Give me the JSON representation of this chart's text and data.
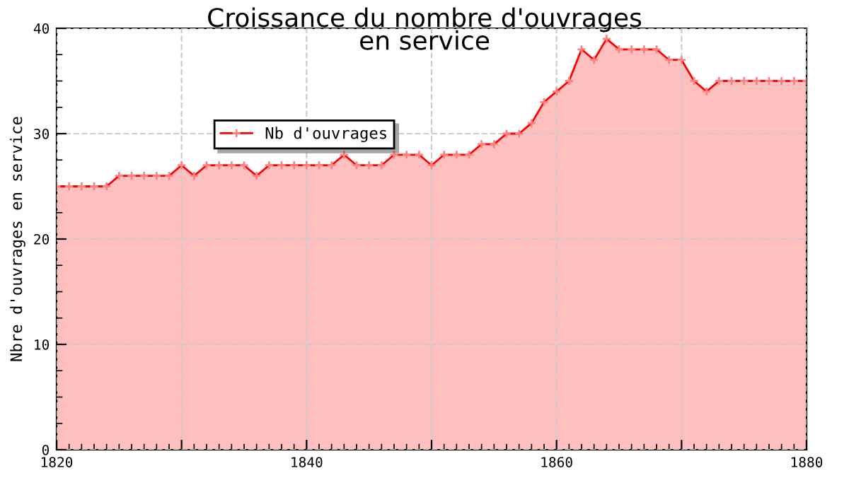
{
  "chart_data": {
    "type": "area",
    "title": "Croissance du nombre d'ouvrages\nen service",
    "ylabel": "Nbre d'ouvrages en service",
    "x": [
      1820,
      1821,
      1822,
      1823,
      1824,
      1825,
      1826,
      1827,
      1828,
      1829,
      1830,
      1831,
      1832,
      1833,
      1834,
      1835,
      1836,
      1837,
      1838,
      1839,
      1840,
      1841,
      1842,
      1843,
      1844,
      1845,
      1846,
      1847,
      1848,
      1849,
      1850,
      1851,
      1852,
      1853,
      1854,
      1855,
      1856,
      1857,
      1858,
      1859,
      1860,
      1861,
      1862,
      1863,
      1864,
      1865,
      1866,
      1867,
      1868,
      1869,
      1870,
      1871,
      1872,
      1873,
      1874,
      1875,
      1876,
      1877,
      1878,
      1879,
      1880
    ],
    "series": [
      {
        "name": "Nb d'ouvrages",
        "color": "#ff0000",
        "values": [
          25,
          25,
          25,
          25,
          25,
          26,
          26,
          26,
          26,
          26,
          27,
          26,
          27,
          27,
          27,
          27,
          26,
          27,
          27,
          27,
          27,
          27,
          27,
          28,
          27,
          27,
          27,
          28,
          28,
          28,
          27,
          28,
          28,
          28,
          29,
          29,
          30,
          30,
          31,
          33,
          34,
          35,
          38,
          37,
          39,
          38,
          38,
          38,
          38,
          37,
          37,
          35,
          34,
          35,
          35,
          35,
          35,
          35,
          35,
          35,
          35
        ]
      }
    ],
    "xlim": [
      1820,
      1880
    ],
    "ylim": [
      0,
      40
    ],
    "xticks": [
      1820,
      {
        "value": 1830,
        "label": null
      },
      1840,
      {
        "value": 1850,
        "label": null
      },
      1860,
      {
        "value": 1870,
        "label": null
      },
      1880
    ],
    "yticks": [
      0,
      10,
      20,
      30,
      40
    ],
    "grid": true,
    "legend": "top left",
    "marker": "cross",
    "line_style": "solid"
  }
}
